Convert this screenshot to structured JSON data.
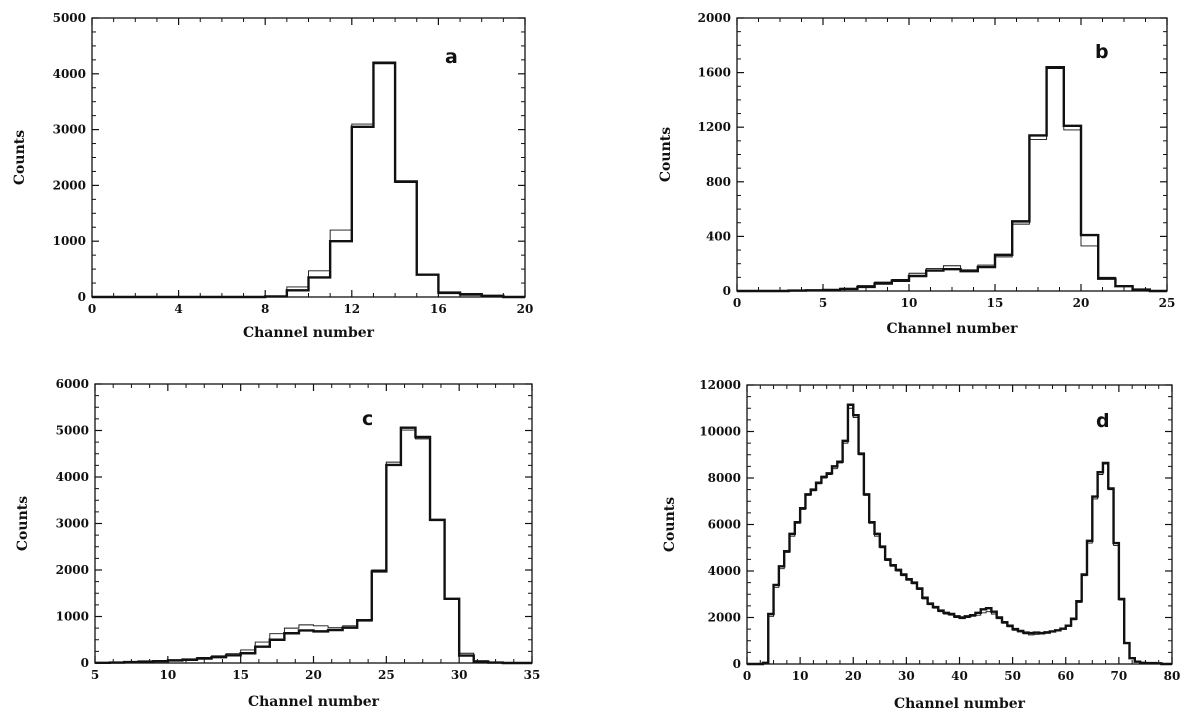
{
  "chart_data": [
    {
      "type": "histogram",
      "panel_label": "a",
      "xlabel": "Channel number",
      "ylabel": "Counts",
      "xlim": [
        0,
        20
      ],
      "ylim": [
        0,
        5000
      ],
      "xticks": [
        0,
        4,
        8,
        12,
        16,
        20
      ],
      "yticks": [
        0,
        1000,
        2000,
        3000,
        4000,
        5000
      ],
      "bin_start": 0,
      "bin_width": 1,
      "series": [
        {
          "style": "thick",
          "values": [
            0,
            0,
            0,
            0,
            0,
            0,
            0,
            0,
            10,
            120,
            350,
            1000,
            3050,
            4200,
            2070,
            400,
            80,
            50,
            20,
            0
          ]
        },
        {
          "style": "thin",
          "values": [
            0,
            0,
            0,
            0,
            0,
            0,
            0,
            0,
            15,
            180,
            470,
            1200,
            3100,
            4180,
            2050,
            400,
            60,
            30,
            10,
            0
          ]
        }
      ]
    },
    {
      "type": "histogram",
      "panel_label": "b",
      "xlabel": "Channel number",
      "ylabel": "Counts",
      "xlim": [
        0,
        25
      ],
      "ylim": [
        0,
        2000
      ],
      "xticks": [
        0,
        5,
        10,
        15,
        20,
        25
      ],
      "yticks": [
        0,
        400,
        800,
        1200,
        1600,
        2000
      ],
      "bin_start": 0,
      "bin_width": 1,
      "series": [
        {
          "style": "thick",
          "values": [
            0,
            0,
            0,
            3,
            5,
            8,
            15,
            30,
            55,
            75,
            110,
            150,
            160,
            145,
            175,
            265,
            510,
            1140,
            1640,
            1210,
            410,
            90,
            35,
            10,
            0
          ]
        },
        {
          "style": "thin",
          "values": [
            0,
            0,
            0,
            3,
            5,
            10,
            20,
            40,
            65,
            85,
            130,
            165,
            185,
            155,
            190,
            250,
            490,
            1110,
            1630,
            1180,
            330,
            100,
            40,
            10,
            0
          ]
        }
      ]
    },
    {
      "type": "histogram",
      "panel_label": "c",
      "xlabel": "Channel number",
      "ylabel": "Counts",
      "xlim": [
        5,
        35
      ],
      "ylim": [
        0,
        6000
      ],
      "xticks": [
        5,
        10,
        15,
        20,
        25,
        30,
        35
      ],
      "yticks": [
        0,
        1000,
        2000,
        3000,
        4000,
        5000,
        6000
      ],
      "bin_start": 5,
      "bin_width": 1,
      "series": [
        {
          "style": "thick",
          "values": [
            5,
            10,
            20,
            30,
            40,
            55,
            70,
            95,
            125,
            165,
            210,
            350,
            500,
            640,
            700,
            680,
            710,
            760,
            920,
            1970,
            4260,
            5060,
            4860,
            3080,
            1380,
            160,
            30,
            10,
            0,
            0
          ]
        },
        {
          "style": "thin",
          "values": [
            5,
            10,
            20,
            35,
            50,
            70,
            90,
            120,
            155,
            200,
            280,
            450,
            630,
            750,
            820,
            800,
            760,
            800,
            900,
            2000,
            4320,
            5010,
            4820,
            3060,
            1390,
            210,
            50,
            15,
            0,
            0
          ]
        }
      ]
    },
    {
      "type": "histogram",
      "panel_label": "d",
      "xlabel": "Channel number",
      "ylabel": "Counts",
      "xlim": [
        0,
        80
      ],
      "ylim": [
        0,
        12000
      ],
      "xticks": [
        0,
        10,
        20,
        30,
        40,
        50,
        60,
        70,
        80
      ],
      "yticks": [
        0,
        2000,
        4000,
        6000,
        8000,
        10000,
        12000
      ],
      "bin_start": 0,
      "bin_width": 1,
      "series": [
        {
          "style": "thick",
          "values": [
            0,
            0,
            0,
            50,
            2150,
            3400,
            4200,
            4850,
            5600,
            6100,
            6700,
            7300,
            7500,
            7800,
            8050,
            8200,
            8500,
            8700,
            9600,
            11150,
            10700,
            9050,
            7300,
            6100,
            5600,
            5050,
            4500,
            4250,
            4050,
            3850,
            3650,
            3500,
            3250,
            2850,
            2600,
            2450,
            2300,
            2200,
            2150,
            2050,
            2000,
            2050,
            2100,
            2200,
            2350,
            2400,
            2250,
            2000,
            1800,
            1650,
            1500,
            1420,
            1350,
            1330,
            1350,
            1330,
            1360,
            1400,
            1450,
            1520,
            1650,
            1950,
            2700,
            3850,
            5300,
            7200,
            8250,
            8650,
            7550,
            5200,
            2800,
            900,
            250,
            100,
            50,
            40,
            40,
            30,
            0,
            0
          ]
        },
        {
          "style": "thin",
          "values": [
            0,
            0,
            0,
            60,
            2050,
            3300,
            4100,
            4800,
            5500,
            6050,
            6650,
            7250,
            7450,
            7750,
            8000,
            8150,
            8400,
            8650,
            9500,
            11000,
            10600,
            9000,
            7250,
            6050,
            5500,
            5000,
            4450,
            4200,
            4000,
            3800,
            3600,
            3450,
            3200,
            2800,
            2550,
            2400,
            2250,
            2150,
            2100,
            2000,
            1950,
            2000,
            2050,
            2100,
            2200,
            2250,
            2150,
            1950,
            1750,
            1600,
            1450,
            1380,
            1300,
            1250,
            1280,
            1290,
            1320,
            1380,
            1430,
            1500,
            1620,
            1900,
            2650,
            3800,
            5200,
            7100,
            8150,
            8600,
            7500,
            5100,
            2750,
            900,
            250,
            100,
            50,
            40,
            40,
            30,
            0,
            0
          ]
        }
      ]
    }
  ]
}
